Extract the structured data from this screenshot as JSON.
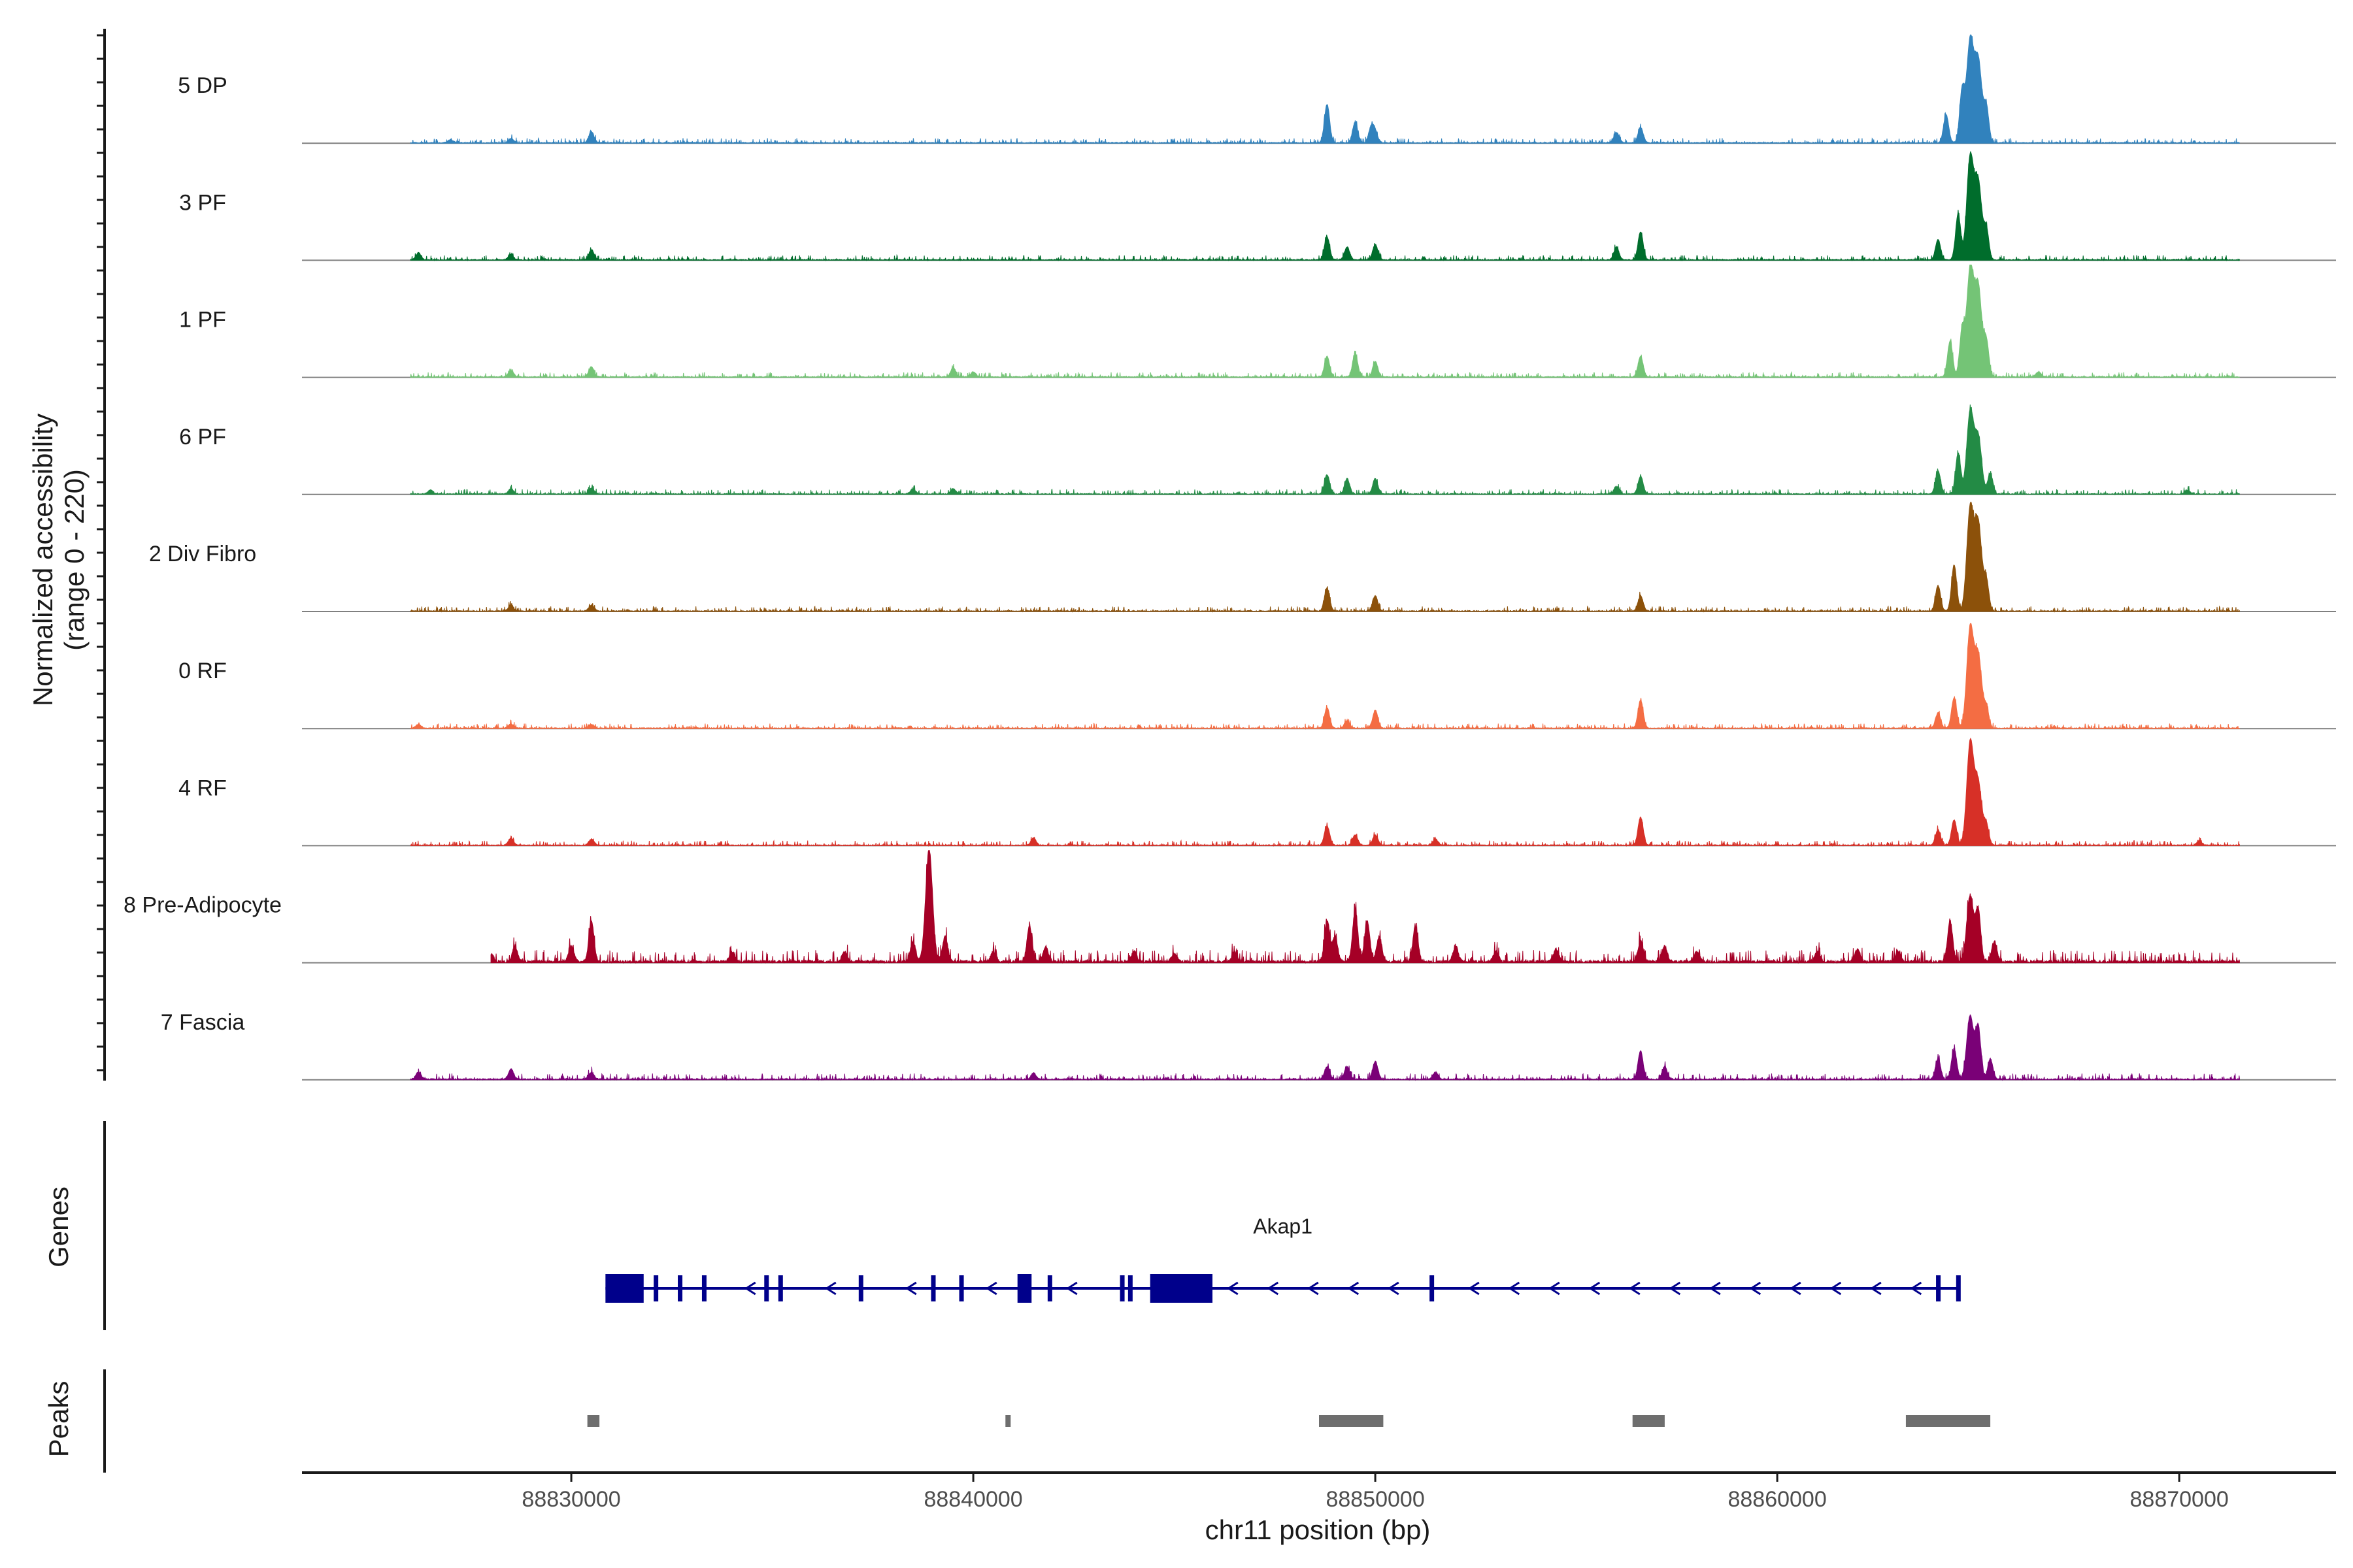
{
  "chart_data": {
    "type": "area",
    "title": "",
    "xlabel": "chr11 position (bp)",
    "ylabel": "Normalized accessibility",
    "ylabel_sub": "(range 0 - 220)",
    "ylim": [
      0,
      220
    ],
    "xlim": [
      88823300,
      88873900
    ],
    "x_ticks": [
      88830000,
      88840000,
      88850000,
      88860000,
      88870000
    ],
    "x_tick_labels": [
      "88830000",
      "88840000",
      "88850000",
      "88860000",
      "88870000"
    ],
    "tracks": [
      {
        "name": "5 DP",
        "color": "#3182bd",
        "baseline": 5,
        "noise": 4,
        "span": [
          88826000,
          88871500
        ],
        "peaks": [
          [
            88827000,
            6
          ],
          [
            88828500,
            8
          ],
          [
            88830500,
            22
          ],
          [
            88848800,
            75
          ],
          [
            88849500,
            40
          ],
          [
            88849900,
            30
          ],
          [
            88850000,
            20
          ],
          [
            88856000,
            20
          ],
          [
            88856600,
            30
          ],
          [
            88864200,
            55
          ],
          [
            88864600,
            100
          ],
          [
            88864800,
            200
          ],
          [
            88865000,
            160
          ],
          [
            88865200,
            70
          ]
        ]
      },
      {
        "name": "3 PF",
        "color": "#006d2c",
        "baseline": 5,
        "noise": 4,
        "span": [
          88826000,
          88871500
        ],
        "peaks": [
          [
            88826200,
            14
          ],
          [
            88828500,
            10
          ],
          [
            88830500,
            20
          ],
          [
            88848800,
            45
          ],
          [
            88849300,
            25
          ],
          [
            88850000,
            30
          ],
          [
            88856000,
            25
          ],
          [
            88856600,
            55
          ],
          [
            88864000,
            40
          ],
          [
            88864500,
            90
          ],
          [
            88864800,
            200
          ],
          [
            88865000,
            150
          ],
          [
            88865200,
            60
          ]
        ]
      },
      {
        "name": "1 PF",
        "color": "#74c476",
        "baseline": 5,
        "noise": 4,
        "span": [
          88826000,
          88871500
        ],
        "peaks": [
          [
            88828500,
            12
          ],
          [
            88830500,
            20
          ],
          [
            88839500,
            18
          ],
          [
            88840000,
            10
          ],
          [
            88848800,
            40
          ],
          [
            88849500,
            45
          ],
          [
            88850000,
            30
          ],
          [
            88856600,
            40
          ],
          [
            88864300,
            70
          ],
          [
            88864600,
            90
          ],
          [
            88864800,
            210
          ],
          [
            88865000,
            175
          ],
          [
            88865200,
            70
          ],
          [
            88866500,
            10
          ]
        ]
      },
      {
        "name": "6 PF",
        "color": "#238b45",
        "baseline": 5,
        "noise": 4,
        "span": [
          88826000,
          88871500
        ],
        "peaks": [
          [
            88826500,
            8
          ],
          [
            88828500,
            10
          ],
          [
            88830500,
            12
          ],
          [
            88838500,
            10
          ],
          [
            88839500,
            10
          ],
          [
            88848800,
            38
          ],
          [
            88849300,
            30
          ],
          [
            88850000,
            30
          ],
          [
            88856000,
            15
          ],
          [
            88856600,
            35
          ],
          [
            88864000,
            45
          ],
          [
            88864500,
            80
          ],
          [
            88864800,
            160
          ],
          [
            88865000,
            110
          ],
          [
            88865300,
            40
          ],
          [
            88870200,
            8
          ]
        ]
      },
      {
        "name": "2 Div Fibro",
        "color": "#8c510a",
        "baseline": 5,
        "noise": 4,
        "span": [
          88826000,
          88871500
        ],
        "peaks": [
          [
            88828500,
            12
          ],
          [
            88830500,
            12
          ],
          [
            88848800,
            45
          ],
          [
            88850000,
            30
          ],
          [
            88856600,
            30
          ],
          [
            88864000,
            50
          ],
          [
            88864400,
            90
          ],
          [
            88864800,
            200
          ],
          [
            88865000,
            170
          ],
          [
            88865200,
            60
          ]
        ]
      },
      {
        "name": "0 RF",
        "color": "#f46d43",
        "baseline": 5,
        "noise": 4,
        "span": [
          88826000,
          88871500
        ],
        "peaks": [
          [
            88826200,
            8
          ],
          [
            88828500,
            8
          ],
          [
            88830500,
            8
          ],
          [
            88848800,
            40
          ],
          [
            88849300,
            15
          ],
          [
            88850000,
            35
          ],
          [
            88856600,
            55
          ],
          [
            88864000,
            30
          ],
          [
            88864400,
            60
          ],
          [
            88864800,
            195
          ],
          [
            88865000,
            140
          ],
          [
            88865200,
            40
          ]
        ]
      },
      {
        "name": "4 RF",
        "color": "#d73027",
        "baseline": 5,
        "noise": 4,
        "span": [
          88826000,
          88871500
        ],
        "peaks": [
          [
            88828500,
            14
          ],
          [
            88830500,
            12
          ],
          [
            88841500,
            14
          ],
          [
            88848800,
            38
          ],
          [
            88849500,
            20
          ],
          [
            88850000,
            20
          ],
          [
            88851500,
            12
          ],
          [
            88856600,
            55
          ],
          [
            88864000,
            30
          ],
          [
            88864400,
            50
          ],
          [
            88864800,
            200
          ],
          [
            88865000,
            120
          ],
          [
            88865200,
            40
          ],
          [
            88870500,
            8
          ]
        ]
      },
      {
        "name": "8 Pre-Adipocyte",
        "color": "#a50026",
        "baseline": 5,
        "noise": 10,
        "span": [
          88828000,
          88871500
        ],
        "peaks": [
          [
            88828000,
            15
          ],
          [
            88828600,
            30
          ],
          [
            88830000,
            30
          ],
          [
            88830500,
            80
          ],
          [
            88834000,
            20
          ],
          [
            88836800,
            20
          ],
          [
            88838500,
            40
          ],
          [
            88838900,
            220
          ],
          [
            88839300,
            50
          ],
          [
            88840500,
            20
          ],
          [
            88841400,
            70
          ],
          [
            88841800,
            30
          ],
          [
            88844000,
            20
          ],
          [
            88845000,
            15
          ],
          [
            88846500,
            20
          ],
          [
            88848800,
            80
          ],
          [
            88849000,
            50
          ],
          [
            88849500,
            100
          ],
          [
            88849800,
            80
          ],
          [
            88850100,
            50
          ],
          [
            88851000,
            70
          ],
          [
            88852000,
            30
          ],
          [
            88853000,
            20
          ],
          [
            88854500,
            25
          ],
          [
            88856600,
            40
          ],
          [
            88857200,
            30
          ],
          [
            88858000,
            20
          ],
          [
            88861000,
            20
          ],
          [
            88862000,
            25
          ],
          [
            88863000,
            20
          ],
          [
            88864300,
            80
          ],
          [
            88864800,
            130
          ],
          [
            88865000,
            100
          ],
          [
            88865400,
            40
          ],
          [
            88871600,
            8
          ]
        ]
      },
      {
        "name": "7 Fascia",
        "color": "#7a0177",
        "baseline": 5,
        "noise": 5,
        "span": [
          88826000,
          88871500
        ],
        "peaks": [
          [
            88826200,
            14
          ],
          [
            88828500,
            20
          ],
          [
            88830500,
            14
          ],
          [
            88841500,
            12
          ],
          [
            88848800,
            25
          ],
          [
            88849300,
            25
          ],
          [
            88850000,
            35
          ],
          [
            88851500,
            14
          ],
          [
            88856600,
            55
          ],
          [
            88857200,
            25
          ],
          [
            88864000,
            40
          ],
          [
            88864400,
            60
          ],
          [
            88864800,
            125
          ],
          [
            88865000,
            100
          ],
          [
            88865300,
            40
          ]
        ]
      }
    ],
    "genes": [
      {
        "name": "Akap1",
        "strand": "-",
        "start": 88830850,
        "end": 88864550,
        "exons": [
          [
            88830850,
            88831800
          ],
          [
            88832050,
            88832150
          ],
          [
            88832650,
            88832750
          ],
          [
            88833250,
            88833320
          ],
          [
            88834800,
            88834880
          ],
          [
            88835150,
            88835250
          ],
          [
            88837150,
            88837250
          ],
          [
            88838950,
            88839050
          ],
          [
            88839650,
            88839750
          ],
          [
            88841100,
            88841450
          ],
          [
            88841850,
            88841900
          ],
          [
            88843650,
            88843720
          ],
          [
            88843850,
            88843900
          ],
          [
            88844400,
            88845950
          ],
          [
            88851350,
            88851450
          ],
          [
            88863950,
            88864000
          ],
          [
            88864450,
            88864550
          ]
        ]
      }
    ],
    "peaks_track": [
      [
        88830400,
        88830700
      ],
      [
        88840800,
        88840900
      ],
      [
        88848600,
        88850200
      ],
      [
        88856400,
        88857200
      ],
      [
        88863200,
        88865300
      ]
    ],
    "colors": {
      "gene": "#00008b",
      "peak": "#6e6e6e",
      "axis": "#1a1a1a",
      "baseline": "#808080"
    }
  },
  "panels": {
    "genes_label": "Genes",
    "peaks_label": "Peaks"
  }
}
